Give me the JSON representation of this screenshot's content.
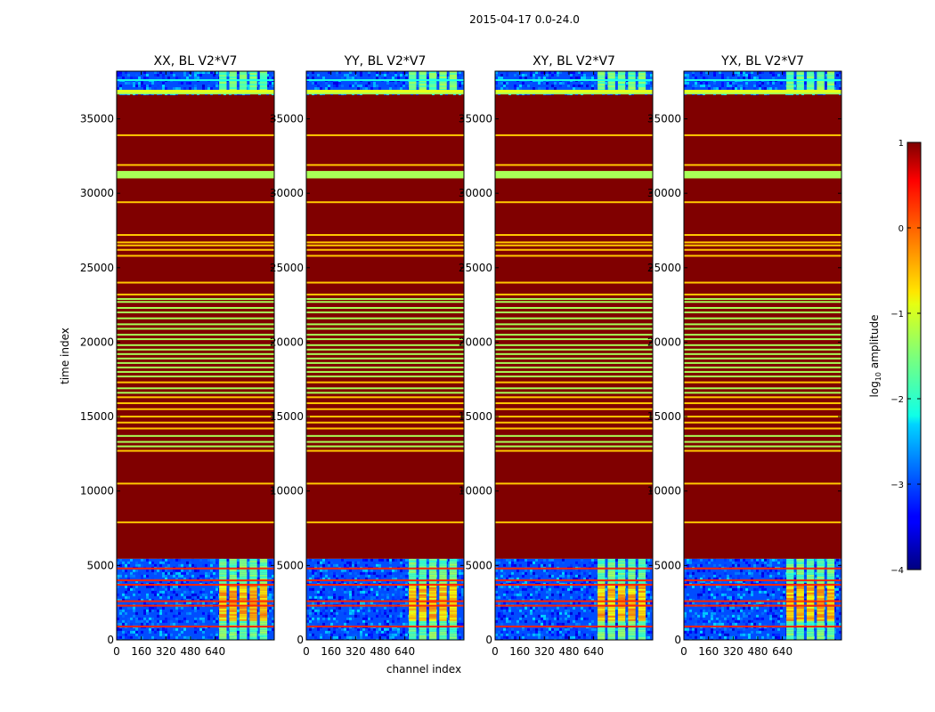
{
  "figure": {
    "suptitle": "2015-04-17 0.0-24.0"
  },
  "chart_data": {
    "type": "heatmap",
    "title": "2015-04-17 0.0-24.0",
    "xlabel": "channel index",
    "ylabel": "time index",
    "xlim": [
      0,
      1024
    ],
    "ylim": [
      0,
      38200
    ],
    "xticks": [
      0,
      160,
      320,
      480,
      640
    ],
    "xtick_labels": [
      "0",
      "160",
      "320",
      "480",
      "640"
    ],
    "yticks": [
      0,
      5000,
      10000,
      15000,
      20000,
      25000,
      30000,
      35000
    ],
    "ytick_labels": [
      "0",
      "5000",
      "10000",
      "15000",
      "20000",
      "25000",
      "30000",
      "35000"
    ],
    "panels": [
      {
        "title": "XX, BL V2*V7",
        "pol": "XX"
      },
      {
        "title": "YY, BL V2*V7",
        "pol": "YY"
      },
      {
        "title": "XY, BL V2*V7",
        "pol": "XY"
      },
      {
        "title": "YX, BL V2*V7",
        "pol": "YX"
      }
    ],
    "colorbar": {
      "label": "log10 amplitude",
      "label_main": "log",
      "label_sub": "10",
      "label_rest": " amplitude",
      "range": [
        -4,
        1
      ],
      "ticks": [
        1,
        0,
        -1,
        -2,
        -3,
        -4
      ],
      "tick_labels": [
        "1",
        "0",
        "−1",
        "−2",
        "−3",
        "−4"
      ],
      "colormap": "jet"
    },
    "data_regions": [
      {
        "kind": "noise",
        "t_start": 0,
        "t_end": 5450,
        "value": -3
      },
      {
        "kind": "saturated",
        "t_start": 5450,
        "t_end": 36650,
        "value": 1
      },
      {
        "kind": "noise",
        "t_start": 36750,
        "t_end": 38200,
        "value": -3
      }
    ],
    "rfi_channel_band": [
      660,
      990
    ],
    "flag_lines": [
      {
        "t": 36700,
        "value": -1.3
      },
      {
        "t": 31200,
        "value": -1.3
      },
      {
        "t": 33900,
        "value": -0.6
      },
      {
        "t": 31900,
        "value": -0.6
      },
      {
        "t": 29400,
        "value": -0.6
      },
      {
        "t": 27200,
        "value": -0.6
      },
      {
        "t": 26700,
        "value": -0.6
      },
      {
        "t": 26500,
        "value": -0.6
      },
      {
        "t": 26200,
        "value": -0.6
      },
      {
        "t": 25800,
        "value": -0.6
      },
      {
        "t": 24000,
        "value": -0.6
      },
      {
        "t": 23200,
        "value": -0.6
      },
      {
        "t": 22900,
        "value": -1.3
      },
      {
        "t": 22700,
        "value": -1.3
      },
      {
        "t": 22300,
        "value": -1.3
      },
      {
        "t": 22000,
        "value": -1.3
      },
      {
        "t": 21600,
        "value": -1.3
      },
      {
        "t": 21200,
        "value": -1.3
      },
      {
        "t": 20900,
        "value": -1.3
      },
      {
        "t": 20500,
        "value": -1.3
      },
      {
        "t": 20200,
        "value": -1.3
      },
      {
        "t": 19800,
        "value": -1.3
      },
      {
        "t": 19500,
        "value": -1.3
      },
      {
        "t": 19200,
        "value": -1.3
      },
      {
        "t": 18900,
        "value": -1.3
      },
      {
        "t": 18600,
        "value": -1.3
      },
      {
        "t": 18300,
        "value": -1.3
      },
      {
        "t": 18000,
        "value": -1.3
      },
      {
        "t": 17700,
        "value": -1.3
      },
      {
        "t": 17300,
        "value": -0.6
      },
      {
        "t": 16900,
        "value": -1.3
      },
      {
        "t": 16600,
        "value": -1.3
      },
      {
        "t": 16300,
        "value": -0.6
      },
      {
        "t": 15900,
        "value": -0.6
      },
      {
        "t": 15500,
        "value": -0.6
      },
      {
        "t": 15000,
        "value": -0.6
      },
      {
        "t": 14600,
        "value": -0.6
      },
      {
        "t": 14200,
        "value": -0.6
      },
      {
        "t": 13700,
        "value": -1.3
      },
      {
        "t": 13300,
        "value": -1.3
      },
      {
        "t": 13000,
        "value": -1.3
      },
      {
        "t": 12700,
        "value": -0.6
      },
      {
        "t": 10500,
        "value": -0.6
      },
      {
        "t": 7900,
        "value": -0.6
      },
      {
        "t": 4800,
        "value": 0.2
      },
      {
        "t": 4000,
        "value": 0.2
      },
      {
        "t": 3700,
        "value": 0.2
      },
      {
        "t": 2600,
        "value": 0.2
      },
      {
        "t": 2300,
        "value": 0.2
      },
      {
        "t": 900,
        "value": 0.2
      },
      {
        "t": 37600,
        "value": -2.0
      }
    ],
    "thick_flag_bands": [
      {
        "t_start": 31000,
        "t_end": 31500,
        "value": -1.3
      },
      {
        "t_start": 36650,
        "t_end": 36950,
        "value": -1.0
      }
    ]
  }
}
